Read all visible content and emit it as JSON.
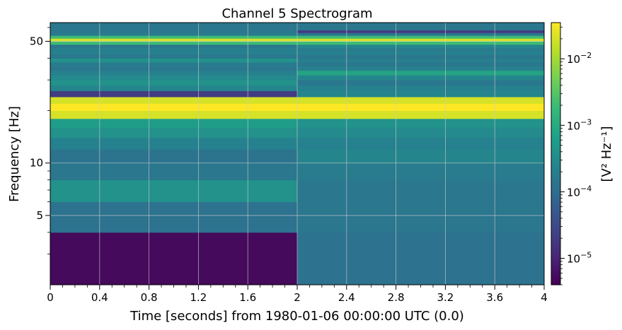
{
  "chart_data": {
    "type": "heatmap",
    "title": "Channel 5 Spectrogram",
    "xlabel": "Time [seconds] from 1980-01-06 00:00:00 UTC (0.0)",
    "ylabel": "Frequency [Hz]",
    "xlim": [
      0,
      4
    ],
    "ylim": [
      2,
      64
    ],
    "yscale": "log",
    "x_ticks": [
      0,
      0.4,
      0.8,
      1.2,
      1.6,
      2,
      2.4,
      2.8,
      3.2,
      3.6,
      4
    ],
    "x_tick_labels": [
      "0",
      "0.4",
      "0.8",
      "1.2",
      "1.6",
      "2",
      "2.4",
      "2.8",
      "3.2",
      "3.6",
      "4"
    ],
    "y_ticks": [
      5,
      10,
      50
    ],
    "y_tick_labels": [
      "5",
      "10",
      "50"
    ],
    "grid": true,
    "colorbar": {
      "label": "[V² Hz⁻¹]",
      "scale": "log",
      "range": [
        4e-06,
        0.035
      ],
      "ticks": [
        1e-05,
        0.0001,
        0.001,
        0.01
      ],
      "tick_labels": [
        {
          "base": "10",
          "exp": "−5"
        },
        {
          "base": "10",
          "exp": "−4"
        },
        {
          "base": "10",
          "exp": "−3"
        },
        {
          "base": "10",
          "exp": "−2"
        }
      ],
      "colormap": "viridis"
    },
    "time_segments": [
      [
        0,
        2
      ],
      [
        2,
        4
      ]
    ],
    "frequency_bins": [
      {
        "f": [
          2.0,
          4.0
        ],
        "values": [
          5e-06,
          0.00012
        ]
      },
      {
        "f": [
          4.0,
          6.0
        ],
        "values": [
          0.00012,
          0.00015
        ]
      },
      {
        "f": [
          6.0,
          8.0
        ],
        "values": [
          0.0004,
          0.00015
        ]
      },
      {
        "f": [
          8.0,
          10.0
        ],
        "values": [
          0.00015,
          0.00018
        ]
      },
      {
        "f": [
          10.0,
          12.0
        ],
        "values": [
          0.00013,
          0.00025
        ]
      },
      {
        "f": [
          12.0,
          14.0
        ],
        "values": [
          0.00022,
          0.00022
        ]
      },
      {
        "f": [
          14.0,
          16.0
        ],
        "values": [
          0.0004,
          0.0003
        ]
      },
      {
        "f": [
          16.0,
          18.0
        ],
        "values": [
          0.0006,
          0.0004
        ]
      },
      {
        "f": [
          18.0,
          20.0
        ],
        "values": [
          0.02,
          0.02
        ]
      },
      {
        "f": [
          20.0,
          22.0
        ],
        "values": [
          0.035,
          0.035
        ]
      },
      {
        "f": [
          22.0,
          24.0
        ],
        "values": [
          0.02,
          0.02
        ]
      },
      {
        "f": [
          24.0,
          26.0
        ],
        "values": [
          2e-05,
          0.00025
        ]
      },
      {
        "f": [
          26.0,
          28.0
        ],
        "values": [
          0.00025,
          0.00022
        ]
      },
      {
        "f": [
          28.0,
          30.0
        ],
        "values": [
          0.0004,
          0.00015
        ]
      },
      {
        "f": [
          30.0,
          32.0
        ],
        "values": [
          0.0003,
          0.00025
        ]
      },
      {
        "f": [
          32.0,
          34.0
        ],
        "values": [
          0.00022,
          0.0008
        ]
      },
      {
        "f": [
          34.0,
          36.0
        ],
        "values": [
          0.00015,
          0.00022
        ]
      },
      {
        "f": [
          36.0,
          38.0
        ],
        "values": [
          0.00018,
          0.00015
        ]
      },
      {
        "f": [
          38.0,
          40.0
        ],
        "values": [
          0.0004,
          0.0002
        ]
      },
      {
        "f": [
          40.0,
          42.0
        ],
        "values": [
          0.00015,
          0.00015
        ]
      },
      {
        "f": [
          42.0,
          44.0
        ],
        "values": [
          0.00022,
          0.00022
        ]
      },
      {
        "f": [
          44.0,
          46.0
        ],
        "values": [
          0.0002,
          0.00018
        ]
      },
      {
        "f": [
          46.0,
          48.0
        ],
        "values": [
          0.00015,
          0.00025
        ]
      },
      {
        "f": [
          48.0,
          50.0
        ],
        "values": [
          0.002,
          0.002
        ]
      },
      {
        "f": [
          50.0,
          52.0
        ],
        "values": [
          0.02,
          0.02
        ]
      },
      {
        "f": [
          52.0,
          54.0
        ],
        "values": [
          0.002,
          0.002
        ]
      },
      {
        "f": [
          54.0,
          56.0
        ],
        "values": [
          0.00018,
          0.00015
        ]
      },
      {
        "f": [
          56.0,
          58.0
        ],
        "values": [
          0.00015,
          2e-05
        ]
      },
      {
        "f": [
          58.0,
          64.0
        ],
        "values": [
          0.00015,
          0.00015
        ]
      }
    ]
  }
}
